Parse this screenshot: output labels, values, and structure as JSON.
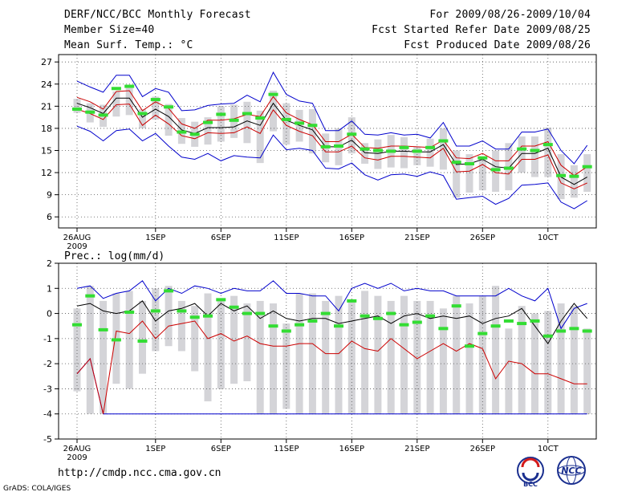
{
  "header": {
    "title": "DERF/NCC/BCC Monthly Forecast",
    "member_size": "Member Size=40",
    "variable": "Mean Surf. Temp.: °C",
    "period": "For 2009/08/26-2009/10/04",
    "refer_date": "Fcst Started Refer Date 2009/08/25",
    "produced_date": "Fcst Produced Date 2009/08/26"
  },
  "footer": {
    "url": "http://cmdp.ncc.cma.gov.cn",
    "grads": "GrADS: COLA/IGES",
    "logo_left": "BCC",
    "logo_right": "NCC"
  },
  "colors": {
    "max": "#0000cc",
    "min": "#0000cc",
    "mean": "#000000",
    "spread": "#cc0000",
    "median": "#33dd33",
    "box": "#d4d4d8",
    "grid": "#555555"
  },
  "chart_data": [
    {
      "type": "box-ensemble",
      "title": "Mean Surf. Temp.: °C",
      "unit": "°C",
      "x": [
        1,
        2,
        3,
        4,
        5,
        6,
        7,
        8,
        9,
        10,
        11,
        12,
        13,
        14,
        15,
        16,
        17,
        18,
        19,
        20,
        21,
        22,
        23,
        24,
        25,
        26,
        27,
        28,
        29,
        30,
        31,
        32,
        33,
        34,
        35,
        36,
        37,
        38,
        39,
        40
      ],
      "x_tick_positions": [
        1,
        7,
        12,
        17,
        22,
        27,
        32,
        37
      ],
      "x_tick_labels": [
        "26AUG",
        "1SEP",
        "6SEP",
        "11SEP",
        "16SEP",
        "21SEP",
        "26SEP",
        "1OCT"
      ],
      "x_tick_display": [
        "26AUG",
        "1SEP",
        "6SEP",
        "11SEP",
        "16SEP",
        "21SEP",
        "26SEP",
        "10CT"
      ],
      "x_sublabel": "2009",
      "ylim": [
        4.5,
        28
      ],
      "yticks": [
        6,
        9,
        12,
        15,
        18,
        21,
        24,
        27
      ],
      "series": [
        {
          "name": "max",
          "values": [
            24.4,
            23.6,
            22.9,
            25.2,
            25.2,
            22.3,
            23.4,
            22.9,
            20.4,
            20.5,
            21.1,
            21.3,
            21.4,
            22.5,
            21.6,
            25.6,
            22.6,
            21.7,
            21.4,
            17.7,
            17.7,
            19.0,
            17.2,
            17.1,
            17.4,
            17.1,
            17.2,
            16.7,
            18.8,
            15.6,
            15.6,
            16.3,
            15.2,
            15.2,
            17.5,
            17.5,
            17.9,
            15.0,
            13.2,
            15.7
          ]
        },
        {
          "name": "upper",
          "values": [
            22.2,
            21.6,
            20.6,
            23.0,
            23.1,
            20.4,
            21.6,
            20.7,
            18.6,
            18.0,
            19.1,
            19.1,
            19.3,
            19.9,
            19.6,
            22.3,
            20.1,
            19.2,
            18.5,
            16.2,
            16.2,
            17.2,
            15.4,
            15.3,
            15.6,
            15.6,
            15.5,
            15.4,
            16.4,
            14.0,
            13.9,
            14.6,
            13.6,
            13.6,
            15.6,
            15.6,
            16.2,
            13.0,
            11.6,
            12.8
          ]
        },
        {
          "name": "mean",
          "values": [
            21.4,
            20.8,
            20.0,
            22.1,
            22.1,
            19.5,
            20.6,
            19.6,
            17.8,
            17.3,
            18.1,
            18.1,
            18.2,
            19.0,
            18.4,
            21.4,
            19.1,
            18.4,
            17.8,
            15.5,
            15.5,
            16.4,
            14.7,
            14.6,
            14.9,
            14.9,
            14.8,
            14.8,
            15.8,
            13.1,
            13.2,
            13.8,
            12.8,
            12.6,
            14.6,
            14.6,
            15.3,
            11.4,
            10.4,
            11.4
          ]
        },
        {
          "name": "lower",
          "values": [
            20.6,
            20.0,
            19.2,
            21.2,
            21.3,
            18.4,
            19.8,
            18.6,
            17.0,
            16.6,
            17.4,
            17.3,
            17.4,
            18.2,
            17.3,
            20.5,
            18.4,
            17.6,
            17.0,
            14.8,
            14.8,
            15.6,
            14.0,
            13.7,
            14.2,
            14.2,
            14.1,
            14.0,
            15.3,
            12.1,
            12.2,
            13.1,
            12.0,
            11.8,
            13.8,
            13.8,
            14.4,
            10.6,
            9.8,
            10.6
          ]
        },
        {
          "name": "min",
          "values": [
            18.3,
            17.6,
            16.3,
            17.7,
            17.9,
            16.3,
            17.3,
            15.6,
            14.1,
            13.8,
            14.6,
            13.6,
            14.3,
            14.1,
            14.0,
            17.1,
            15.1,
            15.3,
            15.0,
            12.6,
            12.5,
            13.3,
            11.7,
            11.0,
            11.7,
            11.8,
            11.5,
            12.1,
            11.6,
            8.4,
            8.6,
            8.8,
            7.7,
            8.5,
            10.3,
            10.4,
            10.6,
            8.0,
            7.1,
            8.2
          ]
        },
        {
          "name": "box_top",
          "values": [
            22.0,
            21.4,
            21.2,
            23.0,
            23.7,
            20.6,
            22.3,
            21.3,
            19.4,
            18.9,
            19.5,
            21.0,
            21.2,
            21.6,
            20.4,
            23.1,
            21.4,
            20.5,
            20.6,
            17.3,
            18.0,
            19.5,
            16.0,
            16.5,
            17.1,
            16.8,
            15.5,
            16.6,
            18.0,
            15.0,
            14.5,
            14.0,
            15.0,
            16.0,
            16.9,
            16.9,
            18.1,
            14.5,
            13.0,
            14.5
          ]
        },
        {
          "name": "box_bottom",
          "values": [
            20.1,
            18.8,
            18.2,
            19.6,
            19.8,
            18.0,
            19.2,
            17.0,
            15.9,
            15.5,
            15.8,
            16.2,
            16.7,
            16.0,
            13.3,
            17.6,
            15.8,
            16.2,
            14.6,
            13.4,
            13.0,
            14.6,
            13.2,
            12.5,
            12.7,
            12.6,
            13.0,
            12.8,
            12.4,
            8.6,
            9.3,
            9.6,
            9.4,
            9.6,
            12.0,
            11.4,
            11.4,
            8.4,
            8.6,
            9.4
          ]
        },
        {
          "name": "median",
          "values": [
            20.6,
            20.2,
            19.8,
            23.4,
            23.7,
            20.0,
            21.9,
            20.9,
            17.5,
            17.2,
            18.8,
            19.9,
            19.1,
            20.0,
            19.4,
            22.6,
            19.2,
            18.7,
            18.4,
            15.5,
            15.6,
            17.2,
            15.2,
            15.0,
            14.9,
            15.4,
            14.9,
            15.4,
            16.3,
            13.4,
            13.2,
            14.0,
            12.4,
            12.6,
            15.2,
            15.0,
            15.8,
            11.6,
            11.5,
            12.8
          ]
        }
      ]
    },
    {
      "type": "box-ensemble",
      "title": "Prec.: log(mm/d)",
      "unit": "log(mm/d)",
      "x": [
        1,
        2,
        3,
        4,
        5,
        6,
        7,
        8,
        9,
        10,
        11,
        12,
        13,
        14,
        15,
        16,
        17,
        18,
        19,
        20,
        21,
        22,
        23,
        24,
        25,
        26,
        27,
        28,
        29,
        30,
        31,
        32,
        33,
        34,
        35,
        36,
        37,
        38,
        39,
        40
      ],
      "x_tick_positions": [
        1,
        7,
        12,
        17,
        22,
        27,
        32,
        37
      ],
      "x_tick_labels": [
        "26AUG",
        "1SEP",
        "6SEP",
        "11SEP",
        "16SEP",
        "21SEP",
        "26SEP",
        "1OCT"
      ],
      "x_tick_display": [
        "26AUG",
        "1SEP",
        "6SEP",
        "11SEP",
        "16SEP",
        "21SEP",
        "26SEP",
        "10CT"
      ],
      "x_sublabel": "2009",
      "ylim": [
        -5,
        2
      ],
      "yticks": [
        -5,
        -4,
        -3,
        -2,
        -1,
        0,
        1,
        2
      ],
      "series": [
        {
          "name": "max",
          "values": [
            1.0,
            1.1,
            0.6,
            0.8,
            0.9,
            1.3,
            0.5,
            1.0,
            0.8,
            1.1,
            1.0,
            0.8,
            1.0,
            0.9,
            0.9,
            1.3,
            0.8,
            0.8,
            0.7,
            0.7,
            0.1,
            1.0,
            1.2,
            1.0,
            1.2,
            0.9,
            1.0,
            0.9,
            0.9,
            0.7,
            0.7,
            0.7,
            0.7,
            1.0,
            0.7,
            0.5,
            1.0,
            -0.6,
            0.2,
            0.4
          ]
        },
        {
          "name": "mean",
          "values": [
            0.3,
            0.4,
            0.1,
            0.0,
            0.1,
            0.5,
            -0.3,
            0.1,
            0.2,
            0.4,
            -0.1,
            0.4,
            0.1,
            0.3,
            -0.2,
            0.1,
            -0.2,
            -0.3,
            -0.2,
            -0.2,
            -0.4,
            -0.3,
            -0.2,
            -0.1,
            -0.4,
            -0.1,
            0.0,
            -0.2,
            -0.1,
            -0.2,
            -0.1,
            -0.4,
            -0.2,
            -0.1,
            0.2,
            -0.5,
            -1.2,
            -0.3,
            0.4,
            -0.2
          ]
        },
        {
          "name": "min",
          "values": [
            -2.4,
            -1.8,
            -4.0,
            -4.0,
            -4.0,
            -4.0,
            -4.0,
            -4.0,
            -4.0,
            -4.0,
            -4.0,
            -4.0,
            -4.0,
            -4.0,
            -4.0,
            -4.0,
            -4.0,
            -4.0,
            -4.0,
            -4.0,
            -4.0,
            -4.0,
            -4.0,
            -4.0,
            -4.0,
            -4.0,
            -4.0,
            -4.0,
            -4.0,
            -4.0,
            -4.0,
            -4.0,
            -4.0,
            -4.0,
            -4.0,
            -4.0,
            -4.0,
            -4.0,
            -4.0,
            -4.0
          ]
        },
        {
          "name": "spread",
          "values": [
            -2.4,
            -1.8,
            -4.0,
            -0.7,
            -0.8,
            -0.3,
            -1.0,
            -0.5,
            -0.4,
            -0.3,
            -1.0,
            -0.8,
            -1.1,
            -0.9,
            -1.2,
            -1.3,
            -1.3,
            -1.2,
            -1.2,
            -1.6,
            -1.6,
            -1.1,
            -1.4,
            -1.5,
            -1.0,
            -1.4,
            -1.8,
            -1.5,
            -1.2,
            -1.5,
            -1.2,
            -1.4,
            -2.6,
            -1.9,
            -2.0,
            -2.4,
            -2.4,
            -2.6,
            -2.8,
            -2.8
          ]
        },
        {
          "name": "box_top",
          "values": [
            0.2,
            1.1,
            0.5,
            0.8,
            0.9,
            0.5,
            1.0,
            1.1,
            0.5,
            0.3,
            0.8,
            0.5,
            0.7,
            0.4,
            0.5,
            0.4,
            -0.4,
            0.8,
            0.8,
            0.5,
            0.7,
            0.5,
            0.9,
            0.7,
            0.5,
            0.7,
            0.5,
            0.5,
            0.2,
            0.7,
            0.4,
            0.7,
            1.1,
            -0.6,
            0.3,
            0.0,
            0.1,
            0.4,
            0.3,
            -0.6
          ]
        },
        {
          "name": "box_bottom",
          "values": [
            -3.1,
            -4.0,
            -4.0,
            -2.8,
            -3.0,
            -2.4,
            -1.5,
            -1.3,
            -1.5,
            -2.3,
            -3.5,
            -3.0,
            -2.8,
            -2.7,
            -4.0,
            -4.0,
            -3.8,
            -4.0,
            -4.0,
            -4.0,
            -4.0,
            -4.0,
            -4.0,
            -4.0,
            -4.0,
            -4.0,
            -4.0,
            -4.0,
            -4.0,
            -4.0,
            -4.0,
            -4.0,
            -4.0,
            -4.0,
            -4.0,
            -4.0,
            -4.0,
            -4.0,
            -4.0,
            -4.0
          ]
        },
        {
          "name": "median",
          "values": [
            -0.45,
            0.7,
            -0.65,
            -1.05,
            0.05,
            -1.1,
            0.1,
            0.9,
            0.1,
            -0.15,
            -0.1,
            0.55,
            0.25,
            0.0,
            0.0,
            -0.5,
            -0.7,
            -0.45,
            -0.3,
            0.0,
            -0.5,
            0.5,
            -0.1,
            -0.2,
            0.0,
            -0.45,
            -0.35,
            -0.1,
            -0.6,
            0.3,
            -1.3,
            -0.8,
            -0.5,
            -0.3,
            -0.4,
            -0.3,
            -0.9,
            -0.7,
            -0.6,
            -0.7
          ]
        }
      ]
    }
  ]
}
